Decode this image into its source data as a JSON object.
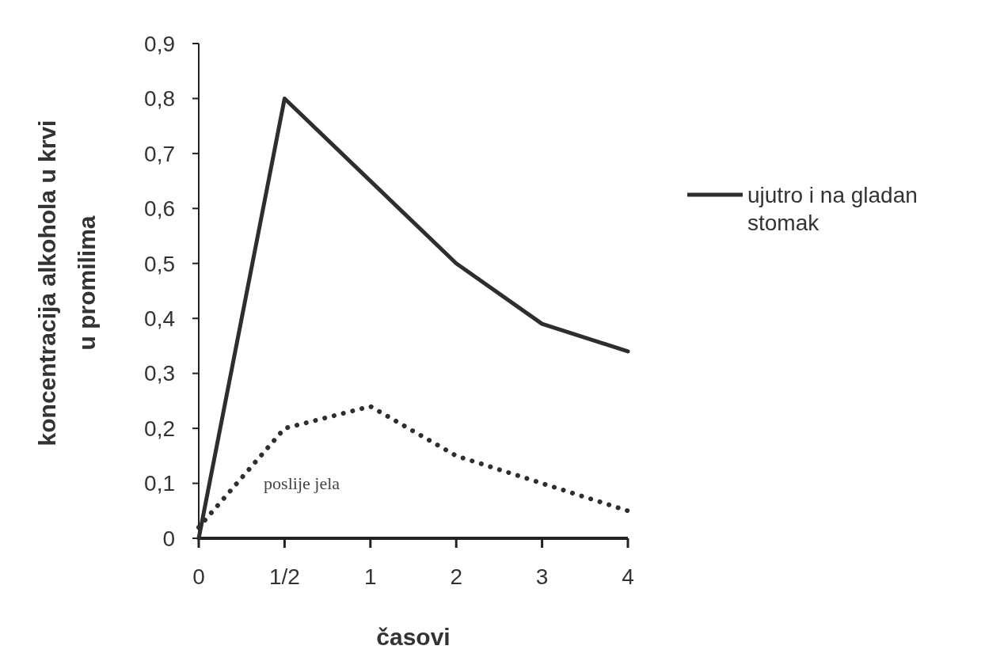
{
  "chart_data": {
    "type": "line",
    "xlabel": "časovi",
    "ylabel": "koncentracija alkohola u krvi\nu promilima",
    "categories": [
      "0",
      "1/2",
      "1",
      "2",
      "3",
      "4"
    ],
    "series": [
      {
        "name": "ujutro i na gladan stomak",
        "color": "#2e2e2e",
        "values": [
          0,
          0.8,
          0.65,
          0.5,
          0.39,
          0.34
        ],
        "line_style": "solid"
      },
      {
        "color": "#2e2e2e",
        "values": [
          0.02,
          0.2,
          0.24,
          0.15,
          0.1,
          0.05
        ],
        "line_style": "dotted"
      }
    ],
    "annotations": [
      "poslije jela"
    ],
    "ylim": [
      0,
      0.9
    ],
    "yticks": [
      {
        "value": 0,
        "label": "0"
      },
      {
        "value": 0.1,
        "label": "0,1"
      },
      {
        "value": 0.2,
        "label": "0,2"
      },
      {
        "value": 0.3,
        "label": "0,3"
      },
      {
        "value": 0.4,
        "label": "0,4"
      },
      {
        "value": 0.5,
        "label": "0,5"
      },
      {
        "value": 0.6,
        "label": "0,6"
      },
      {
        "value": 0.7,
        "label": "0,7"
      },
      {
        "value": 0.8,
        "label": "0,8"
      },
      {
        "value": 0.9,
        "label": "0,9"
      }
    ],
    "legend": "right",
    "grid": false,
    "marker": "none"
  }
}
